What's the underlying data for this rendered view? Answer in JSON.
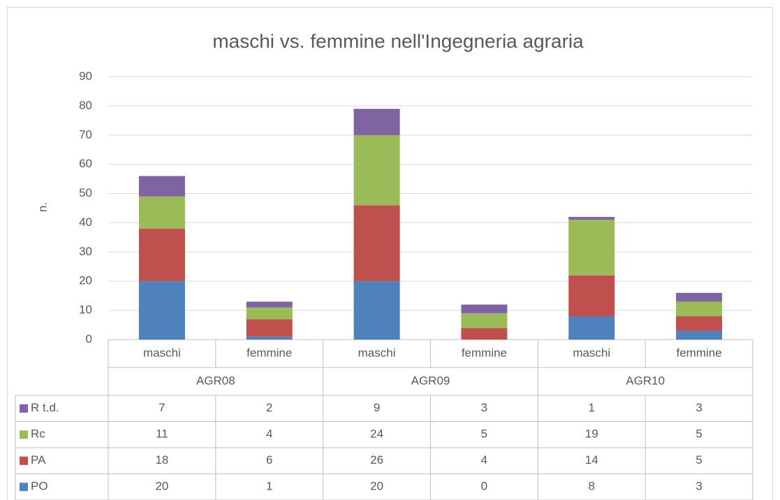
{
  "chart_data": {
    "type": "bar",
    "stacked": true,
    "title": "maschi vs. femmine nell'Ingegneria agraria",
    "ylabel": "n.",
    "categories": [
      "maschi",
      "femmine",
      "maschi",
      "femmine",
      "maschi",
      "femmine"
    ],
    "groups": [
      "AGR08",
      "AGR09",
      "AGR10"
    ],
    "series": [
      {
        "name": "PO",
        "color": "#4f81bd",
        "values": [
          20,
          1,
          20,
          0,
          8,
          3
        ]
      },
      {
        "name": "PA",
        "color": "#c0504d",
        "values": [
          18,
          6,
          26,
          4,
          14,
          5
        ]
      },
      {
        "name": "Rc",
        "color": "#9bbb59",
        "values": [
          11,
          4,
          24,
          5,
          19,
          5
        ]
      },
      {
        "name": "R t.d.",
        "color": "#8064a2",
        "values": [
          7,
          2,
          9,
          3,
          1,
          3
        ]
      }
    ],
    "ylim": [
      0,
      90
    ],
    "yticks": [
      0,
      10,
      20,
      30,
      40,
      50,
      60,
      70,
      80,
      90
    ],
    "grid": true
  }
}
